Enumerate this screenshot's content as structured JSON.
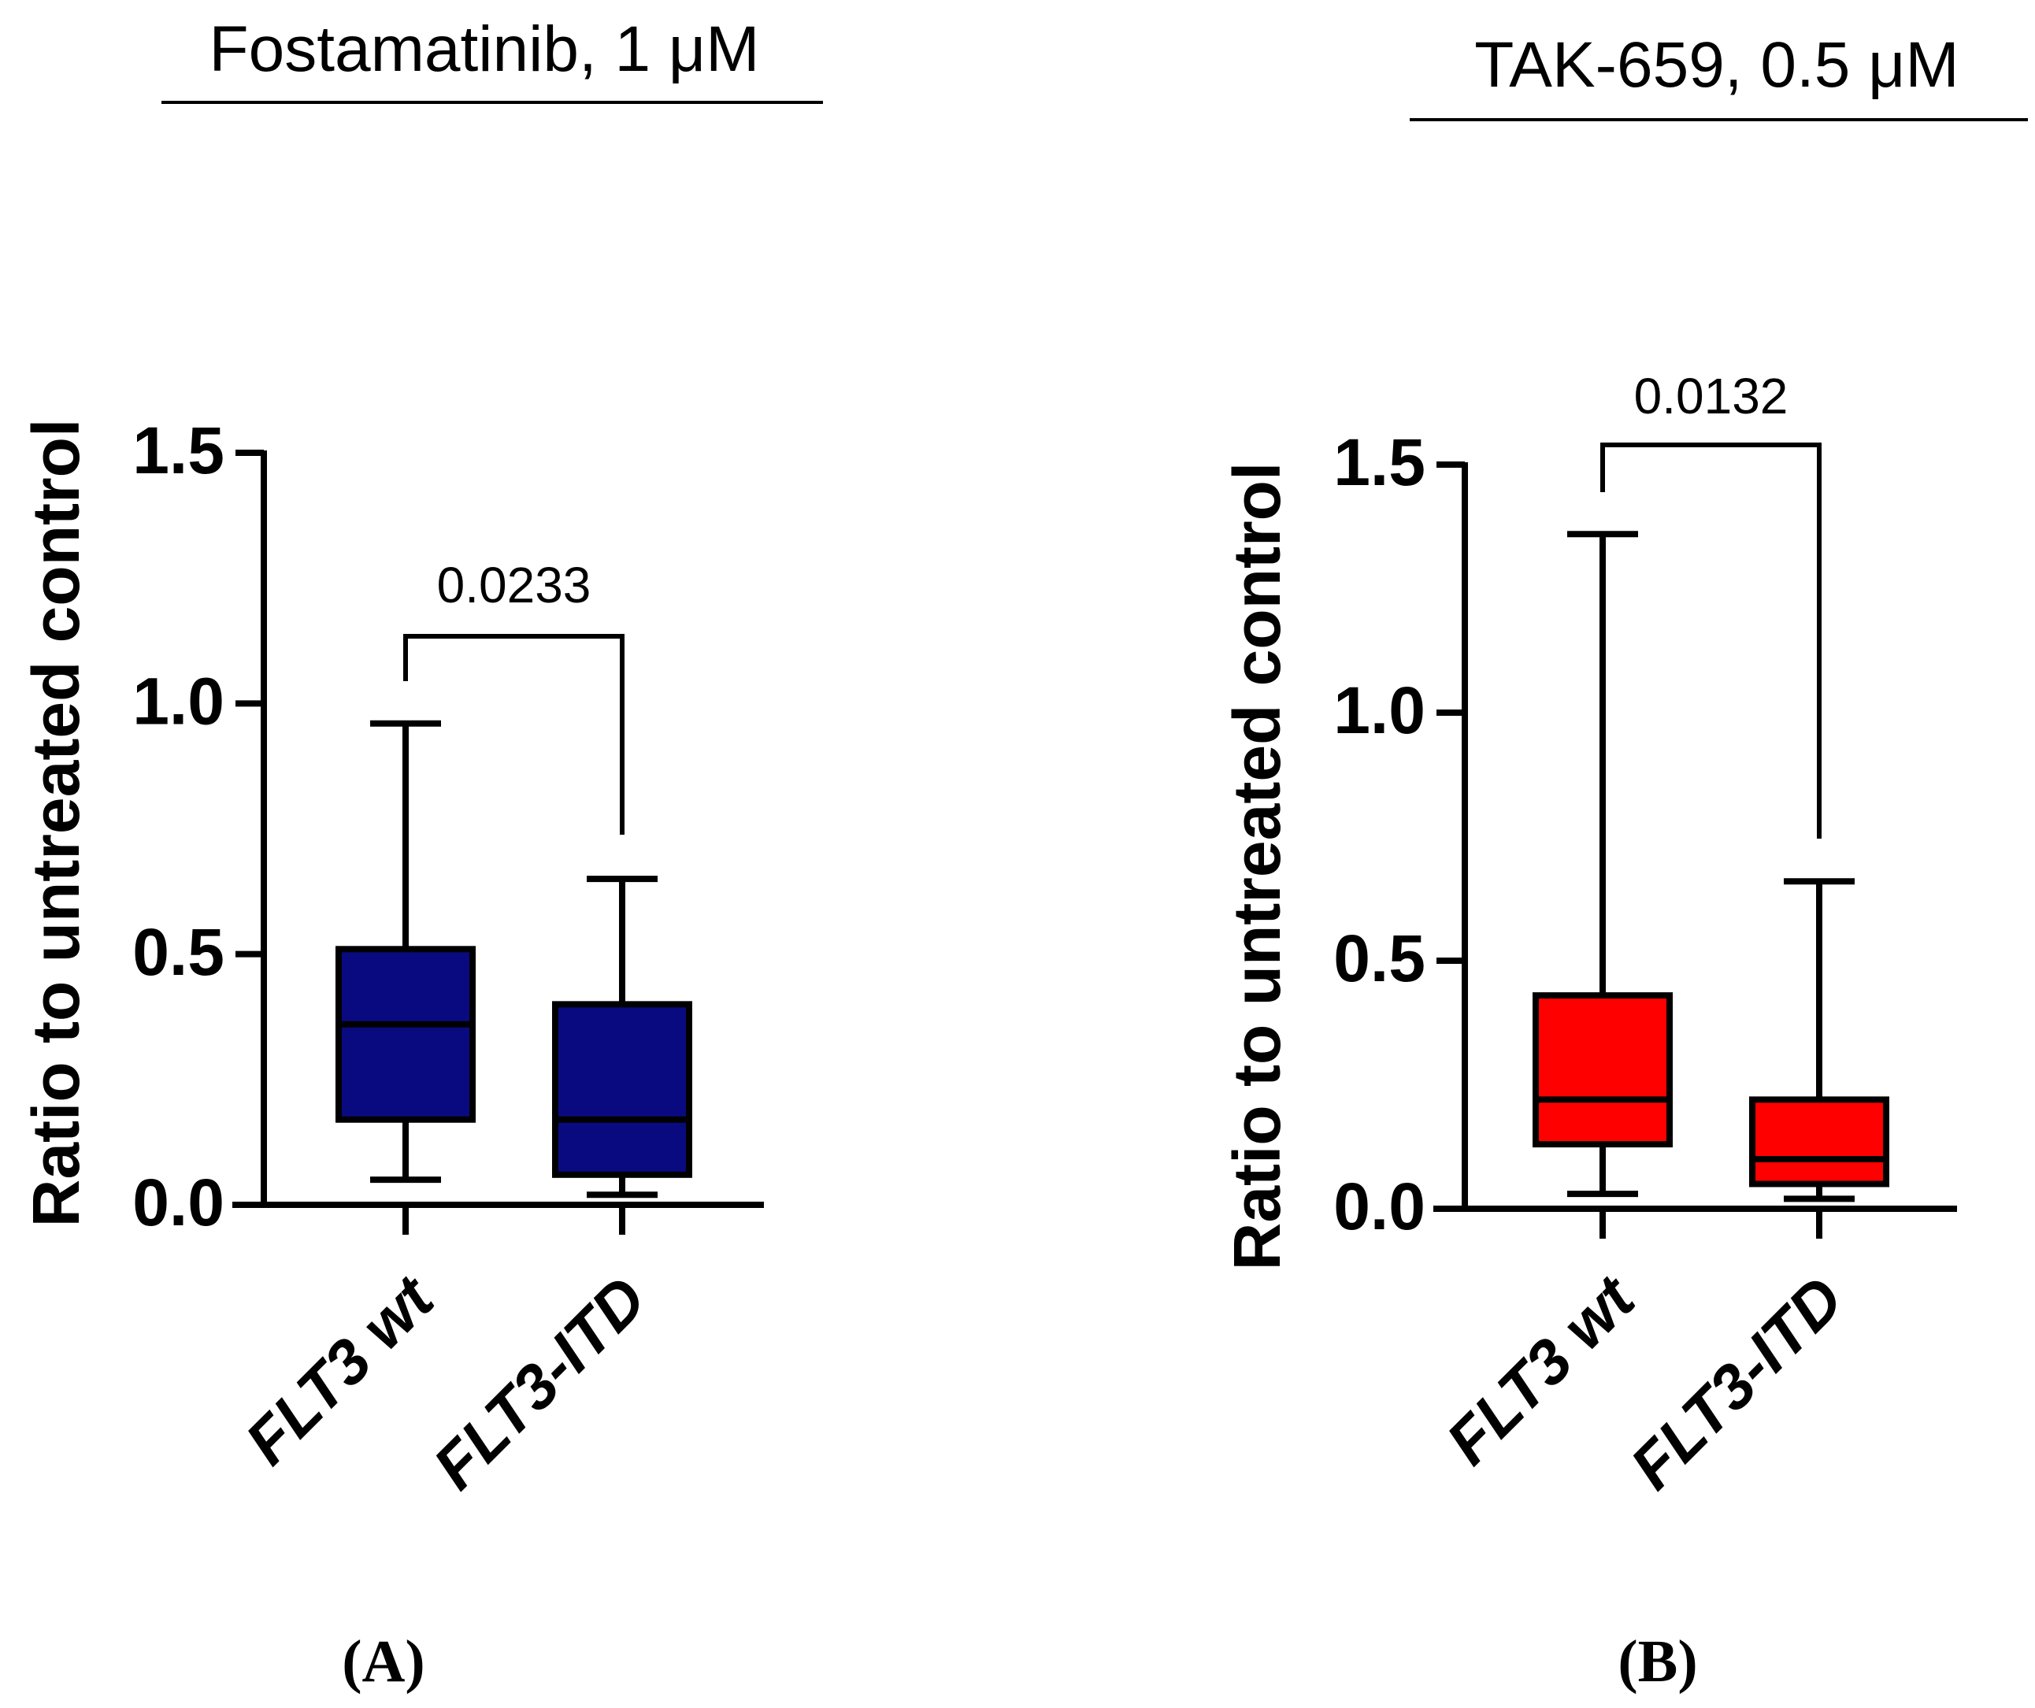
{
  "chart_data": [
    {
      "type": "box",
      "panel_label": "(A)",
      "title": "Fostamatinib, 1 μM",
      "ylabel": "Ratio to untreated control",
      "xlabel": "",
      "ylim": [
        0,
        1.5
      ],
      "yticks": [
        "0.0",
        "0.5",
        "1.0",
        "1.5"
      ],
      "categories": [
        "FLT3 wt",
        "FLT3-ITD"
      ],
      "fill_color": "#0a0a80",
      "boxes": [
        {
          "name": "FLT3 wt",
          "min": 0.05,
          "q1": 0.17,
          "median": 0.36,
          "q3": 0.51,
          "max": 0.96
        },
        {
          "name": "FLT3-ITD",
          "min": 0.02,
          "q1": 0.06,
          "median": 0.17,
          "q3": 0.4,
          "max": 0.65
        }
      ],
      "significance": {
        "label": "0.0233",
        "groups": [
          "FLT3 wt",
          "FLT3-ITD"
        ]
      }
    },
    {
      "type": "box",
      "panel_label": "(B)",
      "title": "TAK-659, 0.5 μM",
      "ylabel": "Ratio to untreated control",
      "xlabel": "",
      "ylim": [
        0,
        1.5
      ],
      "yticks": [
        "0.0",
        "0.5",
        "1.0",
        "1.5"
      ],
      "categories": [
        "FLT3 wt",
        "FLT3-ITD"
      ],
      "fill_color": "#ff0000",
      "boxes": [
        {
          "name": "FLT3 wt",
          "min": 0.03,
          "q1": 0.13,
          "median": 0.22,
          "q3": 0.43,
          "max": 1.36
        },
        {
          "name": "FLT3-ITD",
          "min": 0.02,
          "q1": 0.05,
          "median": 0.1,
          "q3": 0.22,
          "max": 0.66
        }
      ],
      "significance": {
        "label": "0.0132",
        "groups": [
          "FLT3 wt",
          "FLT3-ITD"
        ]
      }
    }
  ]
}
